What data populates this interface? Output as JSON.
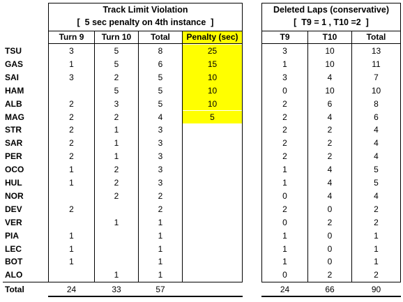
{
  "left": {
    "title": "Track Limit Violation",
    "subtitle": "[  5 sec penalty on 4th instance  ]",
    "columns": [
      "Turn 9",
      "Turn 10",
      "Total",
      "Penalty (sec)"
    ]
  },
  "right": {
    "title": "Deleted Laps (conservative)",
    "subtitle": "[  T9 = 1 , T10 =2  ]",
    "columns": [
      "T9",
      "T10",
      "Total"
    ]
  },
  "rows": [
    {
      "driver": "TSU",
      "t9": "3",
      "t10": "5",
      "total": "8",
      "penalty": "25",
      "d9": "3",
      "d10": "10",
      "dtotal": "13"
    },
    {
      "driver": "GAS",
      "t9": "1",
      "t10": "5",
      "total": "6",
      "penalty": "15",
      "d9": "1",
      "d10": "10",
      "dtotal": "11"
    },
    {
      "driver": "SAI",
      "t9": "3",
      "t10": "2",
      "total": "5",
      "penalty": "10",
      "d9": "3",
      "d10": "4",
      "dtotal": "7"
    },
    {
      "driver": "HAM",
      "t9": "",
      "t10": "5",
      "total": "5",
      "penalty": "10",
      "d9": "0",
      "d10": "10",
      "dtotal": "10"
    },
    {
      "driver": "ALB",
      "t9": "2",
      "t10": "3",
      "total": "5",
      "penalty": "10",
      "d9": "2",
      "d10": "6",
      "dtotal": "8"
    },
    {
      "driver": "MAG",
      "t9": "2",
      "t10": "2",
      "total": "4",
      "penalty": "5",
      "d9": "2",
      "d10": "4",
      "dtotal": "6"
    },
    {
      "driver": "STR",
      "t9": "2",
      "t10": "1",
      "total": "3",
      "penalty": "",
      "d9": "2",
      "d10": "2",
      "dtotal": "4"
    },
    {
      "driver": "SAR",
      "t9": "2",
      "t10": "1",
      "total": "3",
      "penalty": "",
      "d9": "2",
      "d10": "2",
      "dtotal": "4"
    },
    {
      "driver": "PER",
      "t9": "2",
      "t10": "1",
      "total": "3",
      "penalty": "",
      "d9": "2",
      "d10": "2",
      "dtotal": "4"
    },
    {
      "driver": "OCO",
      "t9": "1",
      "t10": "2",
      "total": "3",
      "penalty": "",
      "d9": "1",
      "d10": "4",
      "dtotal": "5"
    },
    {
      "driver": "HUL",
      "t9": "1",
      "t10": "2",
      "total": "3",
      "penalty": "",
      "d9": "1",
      "d10": "4",
      "dtotal": "5"
    },
    {
      "driver": "NOR",
      "t9": "",
      "t10": "2",
      "total": "2",
      "penalty": "",
      "d9": "0",
      "d10": "4",
      "dtotal": "4"
    },
    {
      "driver": "DEV",
      "t9": "2",
      "t10": "",
      "total": "2",
      "penalty": "",
      "d9": "2",
      "d10": "0",
      "dtotal": "2"
    },
    {
      "driver": "VER",
      "t9": "",
      "t10": "1",
      "total": "1",
      "penalty": "",
      "d9": "0",
      "d10": "2",
      "dtotal": "2"
    },
    {
      "driver": "PIA",
      "t9": "1",
      "t10": "",
      "total": "1",
      "penalty": "",
      "d9": "1",
      "d10": "0",
      "dtotal": "1"
    },
    {
      "driver": "LEC",
      "t9": "1",
      "t10": "",
      "total": "1",
      "penalty": "",
      "d9": "1",
      "d10": "0",
      "dtotal": "1"
    },
    {
      "driver": "BOT",
      "t9": "1",
      "t10": "",
      "total": "1",
      "penalty": "",
      "d9": "1",
      "d10": "0",
      "dtotal": "1"
    },
    {
      "driver": "ALO",
      "t9": "",
      "t10": "1",
      "total": "1",
      "penalty": "",
      "d9": "0",
      "d10": "2",
      "dtotal": "2"
    }
  ],
  "totals": {
    "label": "Total",
    "t9": "24",
    "t10": "33",
    "total": "57",
    "d9": "24",
    "d10": "66",
    "dtotal": "90"
  },
  "colors": {
    "highlight": "#ffff00"
  }
}
